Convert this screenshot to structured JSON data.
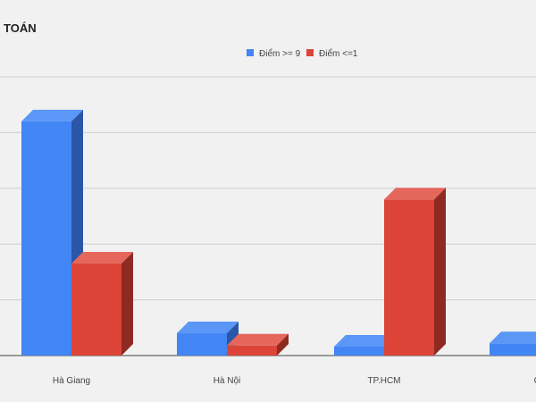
{
  "chart_data": {
    "type": "bar",
    "title": "TOÁN",
    "categories": [
      "Hà Giang",
      "Hà Nội",
      "TP.HCM",
      "Cả"
    ],
    "series": [
      {
        "name": "Điểm >= 9",
        "values": [
          42,
          4,
          1.6,
          2.2
        ],
        "color": "#4285f4",
        "side_color": "#2a56a8",
        "top_color": "#5a97f7"
      },
      {
        "name": "Điểm <=1",
        "values": [
          16.5,
          1.8,
          28,
          0
        ],
        "color": "#db4437",
        "side_color": "#8f2a22",
        "top_color": "#e5675c"
      }
    ],
    "ylim": [
      0,
      50
    ],
    "grid": true,
    "legend_position": "top-center",
    "xlabel": "",
    "ylabel": ""
  }
}
